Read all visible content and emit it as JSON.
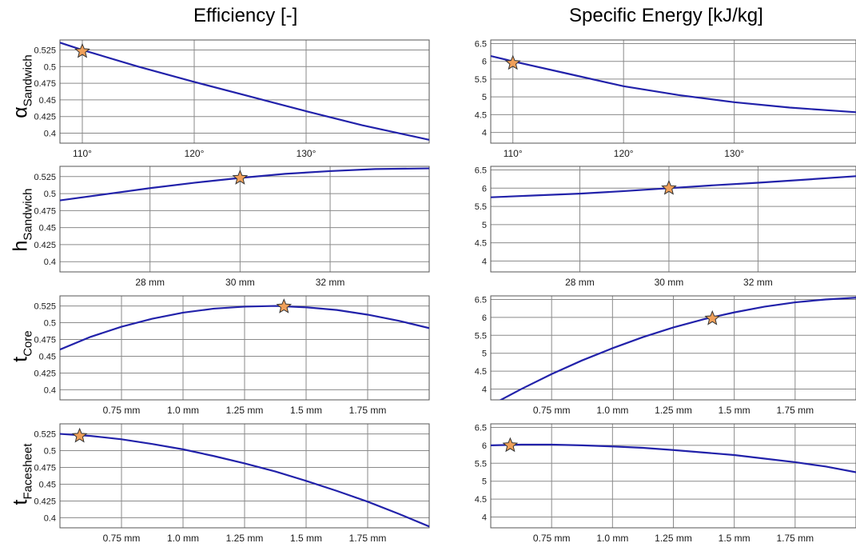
{
  "figure": {
    "columns": [
      {
        "title": "Efficiency [-]"
      },
      {
        "title": "Specific Energy [kJ/kg]"
      }
    ],
    "rows": [
      {
        "label_main": "α",
        "label_sub": "Sandwich"
      },
      {
        "label_main": "h",
        "label_sub": "Sandwich"
      },
      {
        "label_main": "t",
        "label_sub": "Core"
      },
      {
        "label_main": "t",
        "label_sub": "Facesheet"
      }
    ]
  },
  "colors": {
    "curve": "#2222aa",
    "star_fill": "#f0a05a",
    "star_stroke": "#333333",
    "grid": "#8a8a8a",
    "frame": "#555555"
  },
  "chart_data": [
    {
      "type": "line",
      "title": "Efficiency [-]",
      "row": 0,
      "col": 0,
      "xlabel": "α Sandwich",
      "ylabel": "",
      "x_unit": "deg",
      "xlim": [
        108,
        141
      ],
      "ylim": [
        0.385,
        0.54
      ],
      "xticks": [
        110,
        120,
        130
      ],
      "xtick_labels": [
        "110°",
        "120°",
        "130°"
      ],
      "yticks": [
        0.4,
        0.425,
        0.45,
        0.475,
        0.5,
        0.525
      ],
      "ytick_labels": [
        "0.4",
        "0.425",
        "0.45",
        "0.475",
        "0.5",
        "0.525"
      ],
      "grid": true,
      "series": [
        {
          "x": [
            108,
            110,
            115,
            120,
            125,
            130,
            135,
            141
          ],
          "y": [
            0.536,
            0.525,
            0.5,
            0.477,
            0.455,
            0.433,
            0.412,
            0.39
          ]
        }
      ],
      "marker": {
        "x": 110,
        "y": 0.523
      }
    },
    {
      "type": "line",
      "title": "Specific Energy [kJ/kg]",
      "row": 0,
      "col": 1,
      "xlabel": "α Sandwich",
      "ylabel": "",
      "x_unit": "deg",
      "xlim": [
        108,
        141
      ],
      "ylim": [
        3.7,
        6.6
      ],
      "xticks": [
        110,
        120,
        130
      ],
      "xtick_labels": [
        "110°",
        "120°",
        "130°"
      ],
      "yticks": [
        4,
        4.5,
        5,
        5.5,
        6,
        6.5
      ],
      "ytick_labels": [
        "4",
        "4.5",
        "5",
        "5.5",
        "6",
        "6.5"
      ],
      "grid": true,
      "series": [
        {
          "x": [
            108,
            110,
            115,
            120,
            125,
            130,
            135,
            141
          ],
          "y": [
            6.15,
            6.0,
            5.65,
            5.3,
            5.05,
            4.85,
            4.7,
            4.57
          ]
        }
      ],
      "marker": {
        "x": 110,
        "y": 5.95
      }
    },
    {
      "type": "line",
      "title": "Efficiency [-]",
      "row": 1,
      "col": 0,
      "xlabel": "h Sandwich",
      "ylabel": "",
      "x_unit": "mm",
      "xlim": [
        26,
        34.2
      ],
      "ylim": [
        0.385,
        0.54
      ],
      "xticks": [
        28,
        30,
        32
      ],
      "xtick_labels": [
        "28 mm",
        "30 mm",
        "32 mm"
      ],
      "yticks": [
        0.4,
        0.425,
        0.45,
        0.475,
        0.5,
        0.525
      ],
      "ytick_labels": [
        "0.4",
        "0.425",
        "0.45",
        "0.475",
        "0.5",
        "0.525"
      ],
      "grid": true,
      "series": [
        {
          "x": [
            26,
            27,
            28,
            29,
            30,
            31,
            32,
            33,
            34.2
          ],
          "y": [
            0.49,
            0.499,
            0.508,
            0.516,
            0.523,
            0.529,
            0.533,
            0.536,
            0.537
          ]
        }
      ],
      "marker": {
        "x": 30,
        "y": 0.523
      }
    },
    {
      "type": "line",
      "title": "Specific Energy [kJ/kg]",
      "row": 1,
      "col": 1,
      "xlabel": "h Sandwich",
      "ylabel": "",
      "x_unit": "mm",
      "xlim": [
        26,
        34.2
      ],
      "ylim": [
        3.7,
        6.6
      ],
      "xticks": [
        28,
        30,
        32
      ],
      "xtick_labels": [
        "28 mm",
        "30 mm",
        "32 mm"
      ],
      "yticks": [
        4,
        4.5,
        5,
        5.5,
        6,
        6.5
      ],
      "ytick_labels": [
        "4",
        "4.5",
        "5",
        "5.5",
        "6",
        "6.5"
      ],
      "grid": true,
      "series": [
        {
          "x": [
            26,
            27,
            28,
            29,
            30,
            31,
            32,
            33,
            34.2
          ],
          "y": [
            5.75,
            5.8,
            5.85,
            5.92,
            6.0,
            6.08,
            6.15,
            6.23,
            6.33
          ]
        }
      ],
      "marker": {
        "x": 30,
        "y": 6.0
      }
    },
    {
      "type": "line",
      "title": "Efficiency [-]",
      "row": 2,
      "col": 0,
      "xlabel": "t Core",
      "ylabel": "",
      "x_unit": "mm",
      "xlim": [
        0.5,
        2.0
      ],
      "ylim": [
        0.385,
        0.54
      ],
      "xticks": [
        0.75,
        1.0,
        1.25,
        1.5,
        1.75
      ],
      "xtick_labels": [
        "0.75 mm",
        "1.0 mm",
        "1.25 mm",
        "1.5 mm",
        "1.75 mm"
      ],
      "yticks": [
        0.4,
        0.425,
        0.45,
        0.475,
        0.5,
        0.525
      ],
      "ytick_labels": [
        "0.4",
        "0.425",
        "0.45",
        "0.475",
        "0.5",
        "0.525"
      ],
      "grid": true,
      "series": [
        {
          "x": [
            0.5,
            0.625,
            0.75,
            0.875,
            1.0,
            1.125,
            1.25,
            1.375,
            1.5,
            1.625,
            1.75,
            1.875,
            2.0
          ],
          "y": [
            0.46,
            0.479,
            0.494,
            0.506,
            0.515,
            0.521,
            0.524,
            0.525,
            0.523,
            0.519,
            0.512,
            0.503,
            0.492
          ]
        }
      ],
      "marker": {
        "x": 1.41,
        "y": 0.524
      }
    },
    {
      "type": "line",
      "title": "Specific Energy [kJ/kg]",
      "row": 2,
      "col": 1,
      "xlabel": "t Core",
      "ylabel": "",
      "x_unit": "mm",
      "xlim": [
        0.5,
        2.0
      ],
      "ylim": [
        3.7,
        6.6
      ],
      "xticks": [
        0.75,
        1.0,
        1.25,
        1.5,
        1.75
      ],
      "xtick_labels": [
        "0.75 mm",
        "1.0 mm",
        "1.25 mm",
        "1.5 mm",
        "1.75 mm"
      ],
      "yticks": [
        4,
        4.5,
        5,
        5.5,
        6,
        6.5
      ],
      "ytick_labels": [
        "4",
        "4.5",
        "5",
        "5.5",
        "6",
        "6.5"
      ],
      "grid": true,
      "series": [
        {
          "x": [
            0.5,
            0.625,
            0.75,
            0.875,
            1.0,
            1.125,
            1.25,
            1.375,
            1.5,
            1.625,
            1.75,
            1.875,
            2.0
          ],
          "y": [
            3.55,
            4.0,
            4.42,
            4.8,
            5.14,
            5.45,
            5.72,
            5.95,
            6.14,
            6.3,
            6.42,
            6.5,
            6.55
          ]
        }
      ],
      "marker": {
        "x": 1.41,
        "y": 5.97
      }
    },
    {
      "type": "line",
      "title": "Efficiency [-]",
      "row": 3,
      "col": 0,
      "xlabel": "t Facesheet",
      "ylabel": "",
      "x_unit": "mm",
      "xlim": [
        0.5,
        2.0
      ],
      "ylim": [
        0.385,
        0.54
      ],
      "xticks": [
        0.75,
        1.0,
        1.25,
        1.5,
        1.75
      ],
      "xtick_labels": [
        "0.75 mm",
        "1.0 mm",
        "1.25 mm",
        "1.5 mm",
        "1.75 mm"
      ],
      "yticks": [
        0.4,
        0.425,
        0.45,
        0.475,
        0.5,
        0.525
      ],
      "ytick_labels": [
        "0.4",
        "0.425",
        "0.45",
        "0.475",
        "0.5",
        "0.525"
      ],
      "grid": true,
      "series": [
        {
          "x": [
            0.5,
            0.625,
            0.75,
            0.875,
            1.0,
            1.125,
            1.25,
            1.375,
            1.5,
            1.625,
            1.75,
            1.875,
            2.0
          ],
          "y": [
            0.525,
            0.522,
            0.517,
            0.51,
            0.502,
            0.492,
            0.481,
            0.469,
            0.455,
            0.44,
            0.424,
            0.406,
            0.387
          ]
        }
      ],
      "marker": {
        "x": 0.58,
        "y": 0.522
      }
    },
    {
      "type": "line",
      "title": "Specific Energy [kJ/kg]",
      "row": 3,
      "col": 1,
      "xlabel": "t Facesheet",
      "ylabel": "",
      "x_unit": "mm",
      "xlim": [
        0.5,
        2.0
      ],
      "ylim": [
        3.7,
        6.6
      ],
      "xticks": [
        0.75,
        1.0,
        1.25,
        1.5,
        1.75
      ],
      "xtick_labels": [
        "0.75 mm",
        "1.0 mm",
        "1.25 mm",
        "1.5 mm",
        "1.75 mm"
      ],
      "yticks": [
        4,
        4.5,
        5,
        5.5,
        6,
        6.5
      ],
      "ytick_labels": [
        "4",
        "4.5",
        "5",
        "5.5",
        "6",
        "6.5"
      ],
      "grid": true,
      "series": [
        {
          "x": [
            0.5,
            0.625,
            0.75,
            0.875,
            1.0,
            1.125,
            1.25,
            1.375,
            1.5,
            1.625,
            1.75,
            1.875,
            2.0
          ],
          "y": [
            6.0,
            6.02,
            6.02,
            6.0,
            5.97,
            5.93,
            5.87,
            5.8,
            5.73,
            5.63,
            5.53,
            5.41,
            5.25
          ]
        }
      ],
      "marker": {
        "x": 0.58,
        "y": 6.0
      }
    }
  ]
}
